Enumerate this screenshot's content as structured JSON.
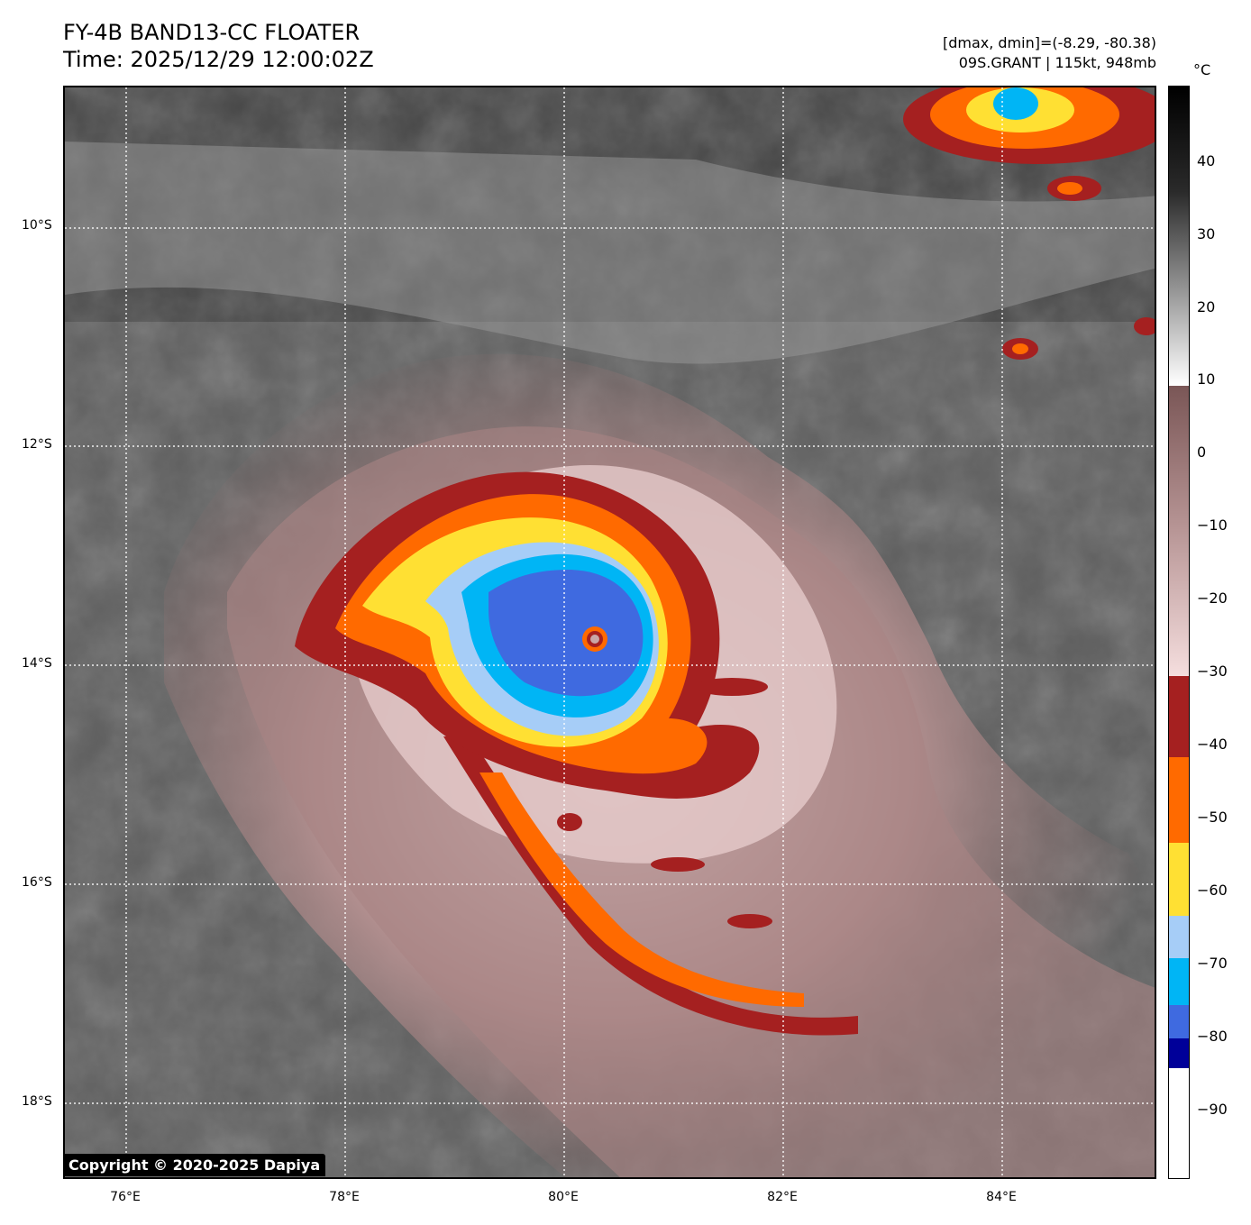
{
  "header": {
    "title": "FY-4B BAND13-CC FLOATER",
    "time": "Time: 2025/12/29 12:00:02Z",
    "dmax_dmin": "[dmax, dmin]=(-8.29, -80.38)",
    "storm": "09S.GRANT | 115kt, 948mb"
  },
  "map": {
    "lat_labels": [
      "10°S",
      "12°S",
      "14°S",
      "16°S",
      "18°S"
    ],
    "lon_labels": [
      "76°E",
      "78°E",
      "80°E",
      "82°E",
      "84°E"
    ],
    "copyright": "Copyright © 2020-2025 Dapiya",
    "colors": {
      "cold_ring_red": "#a52020",
      "orange": "#ff6a00",
      "yellow": "#ffe033",
      "light_blue": "#a6cdf7",
      "cyan": "#00b5f5",
      "royal_blue": "#3f6ae0",
      "navy": "#000099"
    }
  },
  "colorbar": {
    "unit": "°C",
    "ticks": [
      "40",
      "30",
      "20",
      "10",
      "0",
      "−10",
      "−20",
      "−30",
      "−40",
      "−50",
      "−60",
      "−70",
      "−80",
      "−90"
    ]
  }
}
